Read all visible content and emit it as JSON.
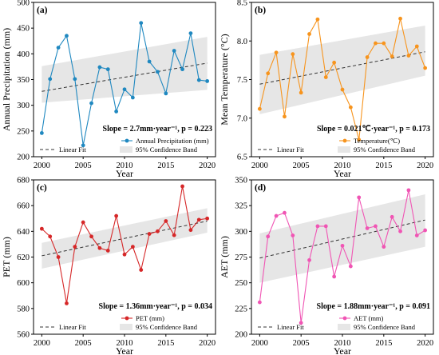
{
  "chart_data": [
    {
      "type": "line",
      "panel_label": "(a)",
      "xlabel": "Year",
      "ylabel": "Annual Precipitation (mm)",
      "xlim": [
        1999,
        2021
      ],
      "ylim": [
        200,
        500
      ],
      "xticks": [
        2000,
        2005,
        2010,
        2015,
        2020
      ],
      "yticks": [
        200,
        250,
        300,
        350,
        400,
        450,
        500
      ],
      "color": "#1f88c0",
      "x": [
        2000,
        2001,
        2002,
        2003,
        2004,
        2005,
        2006,
        2007,
        2008,
        2009,
        2010,
        2011,
        2012,
        2013,
        2014,
        2015,
        2016,
        2017,
        2018,
        2019,
        2020
      ],
      "series": [
        {
          "name": "Annual Precipitation (mm)",
          "values": [
            246,
            351,
            412,
            435,
            351,
            222,
            304,
            374,
            370,
            288,
            331,
            315,
            460,
            385,
            365,
            323,
            406,
            370,
            440,
            349,
            347
          ]
        }
      ],
      "fit": {
        "start": 327,
        "end": 382
      },
      "band": {
        "lower_start": 305,
        "lower_end": 330,
        "upper_start": 376,
        "upper_end": 433
      },
      "annotation": "Slope = 2.7mm·year⁻¹,  p = 0.223",
      "legend": {
        "fit": "Linear Fit",
        "band": "95% Confidence Band",
        "series": "Annual Precipitation (mm)"
      }
    },
    {
      "type": "line",
      "panel_label": "(b)",
      "xlabel": "Year",
      "ylabel": "Mean Temperature (°C)",
      "xlim": [
        1999,
        2021
      ],
      "ylim": [
        6.5,
        8.5
      ],
      "xticks": [
        2000,
        2005,
        2010,
        2015,
        2020
      ],
      "yticks": [
        6.5,
        7.0,
        7.5,
        8.0,
        8.5
      ],
      "ytick_labels": [
        "6.5",
        "7.0",
        "7.5",
        "8.0",
        "8.5"
      ],
      "color": "#f7941d",
      "x": [
        2000,
        2001,
        2002,
        2003,
        2004,
        2005,
        2006,
        2007,
        2008,
        2009,
        2010,
        2011,
        2012,
        2013,
        2014,
        2015,
        2016,
        2017,
        2018,
        2019,
        2020
      ],
      "series": [
        {
          "name": "Temperature(℃)",
          "values": [
            7.12,
            7.58,
            7.85,
            7.02,
            7.83,
            7.33,
            8.09,
            8.28,
            7.53,
            7.72,
            7.37,
            7.14,
            6.72,
            7.79,
            7.97,
            7.97,
            7.8,
            8.29,
            7.81,
            7.93,
            7.65
          ]
        }
      ],
      "fit": {
        "start": 7.44,
        "end": 7.86
      },
      "band": {
        "lower_start": 7.05,
        "lower_end": 7.55,
        "upper_start": 7.82,
        "upper_end": 8.2
      },
      "annotation": "Slope = 0.021℃·year⁻¹,  p = 0.173",
      "legend": {
        "fit": "Linear Fit",
        "band": "95% Confidence Band",
        "series": "Temperature(℃)"
      }
    },
    {
      "type": "line",
      "panel_label": "(c)",
      "xlabel": "Year",
      "ylabel": "PET (mm)",
      "xlim": [
        1999,
        2021
      ],
      "ylim": [
        560,
        680
      ],
      "xticks": [
        2000,
        2005,
        2010,
        2015,
        2020
      ],
      "yticks": [
        560,
        580,
        600,
        620,
        640,
        660,
        680
      ],
      "color": "#d62728",
      "x": [
        2000,
        2001,
        2002,
        2003,
        2004,
        2005,
        2006,
        2007,
        2008,
        2009,
        2010,
        2011,
        2012,
        2013,
        2014,
        2015,
        2016,
        2017,
        2018,
        2019,
        2020
      ],
      "series": [
        {
          "name": "PET (mm)",
          "values": [
            642,
            636,
            620,
            584,
            628,
            647,
            636,
            627,
            625,
            652,
            622,
            628,
            610,
            638,
            640,
            648,
            637,
            675,
            641,
            649,
            650
          ]
        }
      ],
      "fit": {
        "start": 621,
        "end": 648
      },
      "band": {
        "lower_start": 611,
        "lower_end": 639,
        "upper_start": 631,
        "upper_end": 658
      },
      "annotation": "Slope = 1.36mm·year⁻¹,  p = 0.034",
      "legend": {
        "fit": "Linear Fit",
        "band": "95% Confidence Band",
        "series": "PET (mm)"
      }
    },
    {
      "type": "line",
      "panel_label": "(d)",
      "xlabel": "Year",
      "ylabel": "AET (mm)",
      "xlim": [
        1999,
        2021
      ],
      "ylim": [
        200,
        350
      ],
      "xticks": [
        2000,
        2005,
        2010,
        2015,
        2020
      ],
      "yticks": [
        200,
        225,
        250,
        275,
        300,
        325,
        350
      ],
      "color": "#f055b4",
      "x": [
        2000,
        2001,
        2002,
        2003,
        2004,
        2005,
        2006,
        2007,
        2008,
        2009,
        2010,
        2011,
        2012,
        2013,
        2014,
        2015,
        2016,
        2017,
        2018,
        2019,
        2020
      ],
      "series": [
        {
          "name": "AET (mm)",
          "values": [
            231,
            295,
            315,
            318,
            296,
            211,
            272,
            305,
            305,
            256,
            286,
            266,
            333,
            303,
            305,
            285,
            314,
            300,
            340,
            296,
            301
          ]
        }
      ],
      "fit": {
        "start": 274,
        "end": 311
      },
      "band": {
        "lower_start": 250,
        "lower_end": 285,
        "upper_start": 298,
        "upper_end": 336
      },
      "annotation": "Slope = 1.88mm·year⁻¹,  p = 0.091",
      "legend": {
        "fit": "Linear Fit",
        "band": "95% Confidence Band",
        "series": "AET (mm)"
      }
    }
  ]
}
